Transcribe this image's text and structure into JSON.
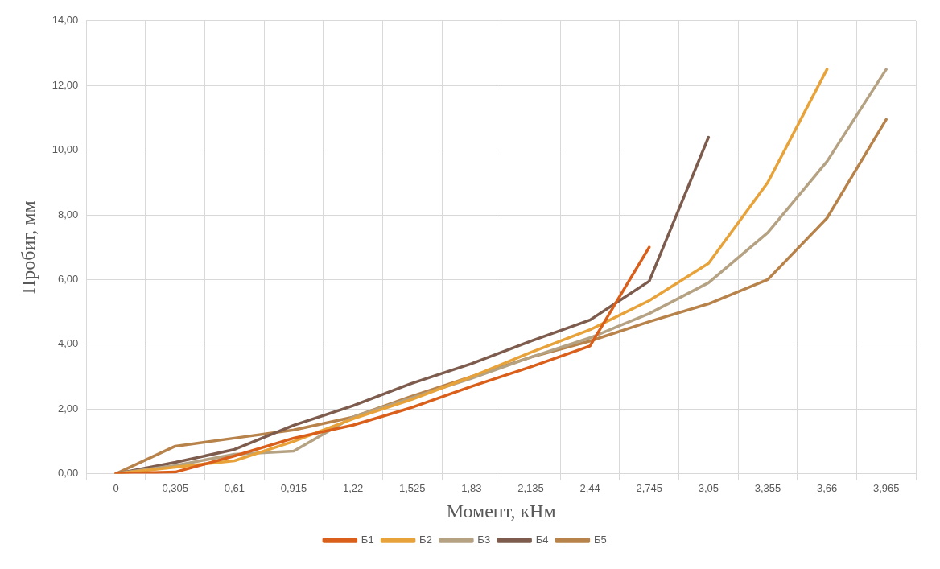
{
  "chart_data": {
    "type": "line",
    "xlabel": "Момент, кНм",
    "ylabel": "Пробиг, мм",
    "categories": [
      "0",
      "0,305",
      "0,61",
      "0,915",
      "1,22",
      "1,525",
      "1,83",
      "2,135",
      "2,44",
      "2,745",
      "3,05",
      "3,355",
      "3,66",
      "3,965"
    ],
    "series": [
      {
        "name": "Б1",
        "color": "#d95f1a",
        "values": [
          0,
          0.05,
          0.55,
          1.1,
          1.5,
          2.05,
          2.7,
          3.3,
          3.95,
          7.0,
          null,
          null,
          null,
          null
        ]
      },
      {
        "name": "Б2",
        "color": "#e8a23a",
        "values": [
          0,
          0.2,
          0.4,
          1.0,
          1.7,
          2.3,
          3.0,
          3.75,
          4.45,
          5.35,
          6.5,
          9.0,
          12.5,
          null
        ]
      },
      {
        "name": "Б3",
        "color": "#b5a283",
        "values": [
          0,
          0.25,
          0.6,
          0.7,
          1.75,
          2.35,
          2.95,
          3.6,
          4.2,
          4.95,
          5.9,
          7.45,
          9.65,
          12.5
        ]
      },
      {
        "name": "Б4",
        "color": "#7d5c4e",
        "values": [
          0,
          0.35,
          0.75,
          1.5,
          2.1,
          2.8,
          3.4,
          4.1,
          4.75,
          5.95,
          10.4,
          null,
          null,
          null
        ]
      },
      {
        "name": "Б5",
        "color": "#b8834b",
        "values": [
          0,
          0.85,
          1.1,
          1.35,
          1.75,
          2.4,
          3.0,
          3.6,
          4.1,
          4.7,
          5.25,
          6.0,
          7.9,
          10.95
        ]
      }
    ],
    "ylim": [
      0,
      14
    ],
    "yticks": [
      {
        "value": 0,
        "label": "0,00"
      },
      {
        "value": 2,
        "label": "2,00"
      },
      {
        "value": 4,
        "label": "4,00"
      },
      {
        "value": 6,
        "label": "6,00"
      },
      {
        "value": 8,
        "label": "8,00"
      },
      {
        "value": 10,
        "label": "10,00"
      },
      {
        "value": 12,
        "label": "12,00"
      },
      {
        "value": 14,
        "label": "14,00"
      }
    ],
    "grid": true,
    "legend": "bottom",
    "marker": "none",
    "line_style": "solid"
  }
}
